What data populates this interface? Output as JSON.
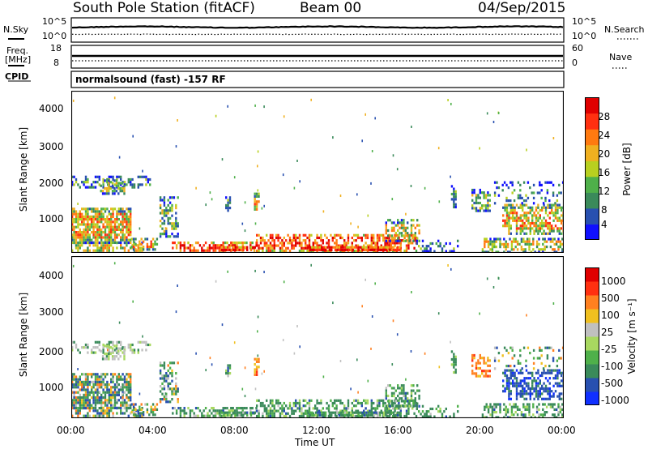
{
  "header": {
    "station": "South Pole Station (fitACF)",
    "beam": "Beam 00",
    "date": "04/Sep/2015"
  },
  "summary": {
    "left_top_label": "N.Sky",
    "left_top_ticks": [
      "10^5",
      "10^0"
    ],
    "right_top_label": "N.Search",
    "right_top_ticks": [
      "10^5",
      "10^0"
    ],
    "left_mid_label_1": "Freq.",
    "left_mid_label_2": "[MHz]",
    "left_mid_ticks": [
      "18",
      "8"
    ],
    "right_mid_label": "Nave",
    "right_mid_ticks": [
      "60",
      "0"
    ],
    "cpid_label": "CPID",
    "cpid_text": "normalsound (fast) -157 RF"
  },
  "colors": {
    "power_scale": [
      "#1010ff",
      "#2850b0",
      "#3a8a5a",
      "#4fb04a",
      "#b8d020",
      "#f0b020",
      "#ff7a10",
      "#ff3010",
      "#e00000"
    ],
    "velocity_scale": [
      "#e00000",
      "#ff3010",
      "#ff8020",
      "#f0c020",
      "#c0c0c0",
      "#a8d860",
      "#4fb04a",
      "#3a8a5a",
      "#2850b0",
      "#1030ff"
    ]
  },
  "chart_data": [
    {
      "type": "heatmap",
      "panel": "power",
      "ylabel": "Slant Range [km]",
      "yticks": [
        "1000",
        "2000",
        "3000",
        "4000"
      ],
      "ylim": [
        200,
        4500
      ],
      "xlim": [
        "00:00",
        "24:00"
      ],
      "colorbar_label": "Power [dB]",
      "colorbar_ticks": [
        "4",
        "8",
        "12",
        "16",
        "20",
        "24",
        "28"
      ],
      "colorbar_range": [
        0,
        30
      ]
    },
    {
      "type": "heatmap",
      "panel": "velocity",
      "ylabel": "Slant Range [km]",
      "yticks": [
        "1000",
        "2000",
        "3000",
        "4000"
      ],
      "ylim": [
        200,
        4500
      ],
      "xlim": [
        "00:00",
        "24:00"
      ],
      "xticks": [
        "00:00",
        "04:00",
        "08:00",
        "12:00",
        "16:00",
        "20:00",
        "00:00"
      ],
      "xlabel": "Time UT",
      "colorbar_label": "Velocity",
      "colorbar_unit": "[m s⁻¹]",
      "colorbar_ticks": [
        "1000",
        "500",
        "100",
        "25",
        "-25",
        "-100",
        "-500",
        "-1000"
      ]
    }
  ]
}
